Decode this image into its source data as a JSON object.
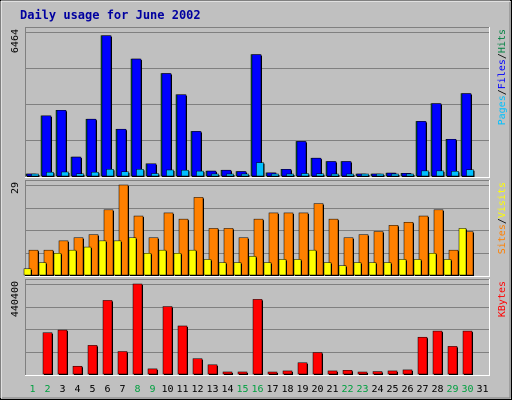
{
  "chart_data": {
    "type": "bar",
    "title": "Daily usage for June 2002",
    "categories": [
      "1",
      "2",
      "3",
      "4",
      "5",
      "6",
      "7",
      "8",
      "9",
      "10",
      "11",
      "12",
      "13",
      "14",
      "15",
      "16",
      "17",
      "18",
      "19",
      "20",
      "21",
      "22",
      "23",
      "24",
      "25",
      "26",
      "27",
      "28",
      "29",
      "30",
      "31"
    ],
    "weekend_days": [
      "1",
      "2",
      "8",
      "9",
      "15",
      "16",
      "22",
      "23",
      "29",
      "30"
    ],
    "colors": {
      "pages": "#00c0ff",
      "files": "#0000ff",
      "hits": "#008040",
      "sites": "#ff8000",
      "visits": "#ffff00",
      "kbytes": "#ff0000",
      "weekday_label": "#000000",
      "weekend_label": "#00a040"
    },
    "panels": [
      {
        "id": "hits-panel",
        "max_label": "6464",
        "ylim": [
          0,
          6464
        ],
        "legend": [
          {
            "label": "Pages",
            "color": "#00c0ff"
          },
          {
            "sep": "/"
          },
          {
            "label": "Files",
            "color": "#0000ff"
          },
          {
            "sep": "/"
          },
          {
            "label": "Hits",
            "color": "#008040"
          }
        ],
        "series": [
          {
            "name": "Hits",
            "color": "#008040",
            "values": [
              60,
              2700,
              2950,
              850,
              2550,
              6300,
              2100,
              5250,
              550,
              4600,
              3650,
              2000,
              220,
              260,
              200,
              5450,
              140,
              300,
              1550,
              800,
              650,
              650,
              30,
              80,
              130,
              120,
              2450,
              3250,
              1650,
              3700,
              0
            ]
          },
          {
            "name": "Files",
            "color": "#0000ff",
            "values": [
              60,
              2700,
              2950,
              850,
              2550,
              6300,
              2100,
              5250,
              550,
              4600,
              3650,
              2000,
              220,
              260,
              200,
              5450,
              140,
              300,
              1550,
              800,
              650,
              650,
              30,
              80,
              130,
              120,
              2450,
              3250,
              1650,
              3700,
              0
            ]
          },
          {
            "name": "Pages",
            "color": "#00c0ff",
            "values": [
              20,
              170,
              180,
              100,
              170,
              300,
              190,
              300,
              110,
              270,
              260,
              220,
              40,
              50,
              50,
              600,
              30,
              90,
              110,
              100,
              90,
              80,
              10,
              30,
              30,
              40,
              230,
              230,
              210,
              280,
              0
            ]
          }
        ]
      },
      {
        "id": "visits-panel",
        "max_label": "29",
        "ylim": [
          0,
          29
        ],
        "legend": [
          {
            "label": "Sites",
            "color": "#ff8000"
          },
          {
            "sep": "/"
          },
          {
            "label": "Visits",
            "color": "#ffff00"
          }
        ],
        "series": [
          {
            "name": "Sites",
            "color": "#ff8000",
            "values": [
              8,
              8,
              11,
              12,
              13,
              21,
              29,
              19,
              12,
              20,
              18,
              25,
              15,
              15,
              12,
              18,
              20,
              20,
              20,
              23,
              18,
              12,
              13,
              14,
              16,
              17,
              19,
              21,
              8,
              14,
              0
            ]
          },
          {
            "name": "Visits",
            "color": "#ffff00",
            "values": [
              2,
              4,
              7,
              8,
              9,
              11,
              11,
              12,
              7,
              8,
              7,
              8,
              5,
              4,
              4,
              6,
              4,
              5,
              5,
              8,
              4,
              3,
              4,
              4,
              4,
              5,
              5,
              7,
              5,
              15,
              0
            ]
          }
        ]
      },
      {
        "id": "kbytes-panel",
        "max_label": "440400",
        "ylim": [
          0,
          440400
        ],
        "legend": [
          {
            "label": "KBytes",
            "color": "#ff0000"
          }
        ],
        "series": [
          {
            "name": "KBytes",
            "color": "#ff0000",
            "values": [
              0,
              202000,
              215000,
              38000,
              140000,
              360000,
              110000,
              440400,
              25000,
              330000,
              235000,
              75000,
              45000,
              10000,
              10000,
              365000,
              8000,
              15000,
              55000,
              105000,
              15000,
              18000,
              5000,
              12000,
              15000,
              20000,
              180000,
              210000,
              135000,
              210000,
              0
            ]
          }
        ]
      }
    ]
  }
}
